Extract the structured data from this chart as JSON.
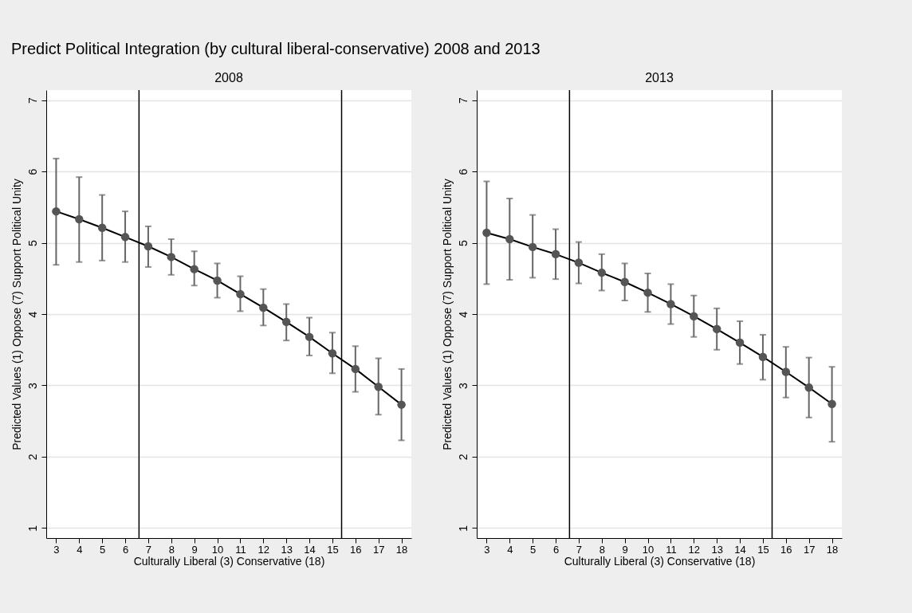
{
  "chart_data": [
    {
      "type": "line",
      "title": "Predict Political Integration (by cultural liberal-conservative) 2008 and 2013",
      "subtitle": "2008",
      "xlabel": "Culturally Liberal (3) Conservative (18)",
      "ylabel": "Predicted Values (1) Oppose (7) Support Political Unity",
      "x": [
        3,
        4,
        5,
        6,
        7,
        8,
        9,
        10,
        11,
        12,
        13,
        14,
        15,
        16,
        17,
        18
      ],
      "series": [
        {
          "color": "#000000",
          "values": [
            5.44,
            5.33,
            5.21,
            5.08,
            4.95,
            4.8,
            4.63,
            4.47,
            4.28,
            4.09,
            3.89,
            3.68,
            3.45,
            3.23,
            2.98,
            2.73
          ],
          "errors": [
            [
              4.69,
              6.18
            ],
            [
              4.73,
              5.92
            ],
            [
              4.75,
              5.67
            ],
            [
              4.73,
              5.44
            ],
            [
              4.66,
              5.23
            ],
            [
              4.55,
              5.05
            ],
            [
              4.4,
              4.88
            ],
            [
              4.23,
              4.71
            ],
            [
              4.04,
              4.53
            ],
            [
              3.84,
              4.35
            ],
            [
              3.63,
              4.14
            ],
            [
              3.42,
              3.95
            ],
            [
              3.17,
              3.74
            ],
            [
              2.91,
              3.55
            ],
            [
              2.59,
              3.38
            ],
            [
              2.23,
              3.23
            ]
          ]
        }
      ],
      "marker": "circle",
      "xlim": [
        2.57,
        18.43
      ],
      "ylim": [
        0.86,
        7.14
      ],
      "xticks": [
        3,
        4,
        5,
        6,
        7,
        8,
        9,
        10,
        11,
        12,
        13,
        14,
        15,
        16,
        17,
        18
      ],
      "yticks": [
        1,
        2,
        3,
        4,
        5,
        6,
        7
      ],
      "grid": "y",
      "ref_lines": [
        {
          "axis": "x",
          "value": 6.6,
          "color": "#000000"
        },
        {
          "axis": "x",
          "value": 15.4,
          "color": "#000000"
        }
      ]
    },
    {
      "type": "line",
      "subtitle": "2013",
      "xlabel": "Culturally Liberal (3) Conservative (18)",
      "ylabel": "Predicted Values  (1) Oppose (7) Support Political Unity",
      "x": [
        3,
        4,
        5,
        6,
        7,
        8,
        9,
        10,
        11,
        12,
        13,
        14,
        15,
        16,
        17,
        18
      ],
      "series": [
        {
          "color": "#000000",
          "values": [
            5.14,
            5.05,
            4.94,
            4.84,
            4.72,
            4.58,
            4.45,
            4.3,
            4.14,
            3.97,
            3.79,
            3.6,
            3.4,
            3.19,
            2.97,
            2.74
          ],
          "errors": [
            [
              4.42,
              5.86
            ],
            [
              4.48,
              5.62
            ],
            [
              4.51,
              5.39
            ],
            [
              4.49,
              5.19
            ],
            [
              4.43,
              5.01
            ],
            [
              4.33,
              4.84
            ],
            [
              4.19,
              4.71
            ],
            [
              4.03,
              4.57
            ],
            [
              3.86,
              4.42
            ],
            [
              3.68,
              4.26
            ],
            [
              3.5,
              4.08
            ],
            [
              3.3,
              3.9
            ],
            [
              3.08,
              3.71
            ],
            [
              2.83,
              3.54
            ],
            [
              2.55,
              3.39
            ],
            [
              2.21,
              3.26
            ]
          ]
        }
      ],
      "marker": "circle",
      "xlim": [
        2.57,
        18.43
      ],
      "ylim": [
        0.86,
        7.14
      ],
      "xticks": [
        3,
        4,
        5,
        6,
        7,
        8,
        9,
        10,
        11,
        12,
        13,
        14,
        15,
        16,
        17,
        18
      ],
      "yticks": [
        1,
        2,
        3,
        4,
        5,
        6,
        7
      ],
      "grid": "y",
      "ref_lines": [
        {
          "axis": "x",
          "value": 6.6,
          "color": "#000000"
        },
        {
          "axis": "x",
          "value": 15.4,
          "color": "#000000"
        }
      ]
    }
  ]
}
